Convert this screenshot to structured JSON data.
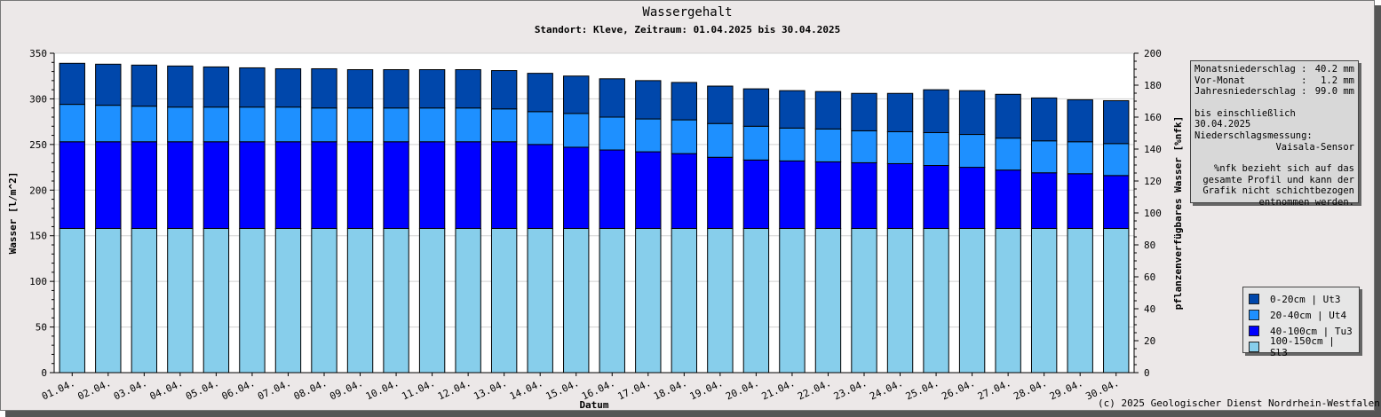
{
  "chart_data": {
    "type": "bar",
    "stacked": true,
    "title": "Wassergehalt",
    "subtitle": "Standort: Kleve, Zeitraum: 01.04.2025 bis 30.04.2025",
    "xlabel": "Datum",
    "ylabel": "Wasser [l/m^2]",
    "ylabel_right": "pflanzenverfügbares Wasser [%nfk]",
    "ylim": [
      0,
      350
    ],
    "ylim_right": [
      0,
      200
    ],
    "yticks": [
      0,
      50,
      100,
      150,
      200,
      250,
      300,
      350
    ],
    "yticks_right": [
      0,
      20,
      40,
      60,
      80,
      100,
      120,
      140,
      160,
      180,
      200
    ],
    "grid": true,
    "legend_position": "bottom-right",
    "categories": [
      "01.04.",
      "02.04.",
      "03.04.",
      "04.04.",
      "05.04.",
      "06.04.",
      "07.04.",
      "08.04.",
      "09.04.",
      "10.04.",
      "11.04.",
      "12.04.",
      "13.04.",
      "14.04.",
      "15.04.",
      "16.04.",
      "17.04.",
      "18.04.",
      "19.04.",
      "20.04.",
      "21.04.",
      "22.04.",
      "23.04.",
      "24.04.",
      "25.04.",
      "26.04.",
      "27.04.",
      "28.04.",
      "29.04.",
      "30.04."
    ],
    "series": [
      {
        "name": "100-150cm | Sl3",
        "color": "#87ceeb",
        "values": [
          158,
          158,
          158,
          158,
          158,
          158,
          158,
          158,
          158,
          158,
          158,
          158,
          158,
          158,
          158,
          158,
          158,
          158,
          158,
          158,
          158,
          158,
          158,
          158,
          158,
          158,
          158,
          158,
          158,
          158
        ]
      },
      {
        "name": "40-100cm | Tu3",
        "color": "#0000ff",
        "values": [
          95,
          95,
          95,
          95,
          95,
          95,
          95,
          95,
          95,
          95,
          95,
          95,
          95,
          92,
          89,
          86,
          84,
          82,
          78,
          75,
          74,
          73,
          72,
          71,
          69,
          67,
          64,
          61,
          60,
          58
        ]
      },
      {
        "name": "20-40cm | Ut4",
        "color": "#1e90ff",
        "values": [
          41,
          40,
          39,
          38,
          38,
          38,
          38,
          37,
          37,
          37,
          37,
          37,
          36,
          36,
          37,
          36,
          36,
          37,
          37,
          37,
          36,
          36,
          35,
          35,
          36,
          36,
          35,
          35,
          35,
          35
        ]
      },
      {
        "name": "0-20cm | Ut3",
        "color": "#0047ab",
        "values": [
          45,
          45,
          45,
          45,
          44,
          43,
          42,
          43,
          42,
          42,
          42,
          42,
          42,
          42,
          41,
          42,
          42,
          41,
          41,
          41,
          41,
          41,
          41,
          42,
          47,
          48,
          48,
          47,
          46,
          47
        ]
      }
    ]
  },
  "info": {
    "monat_label": "Monatsniederschlag :",
    "monat_value": "40.2 mm",
    "vormonat_label": "Vor-Monat          :",
    "vormonat_value": "1.2 mm",
    "jahr_label": "Jahresniederschlag :",
    "jahr_value": "99.0 mm",
    "bis_line": "bis einschließlich 30.04.2025",
    "messung_label": "Niederschlagsmessung:",
    "sensor": "Vaisala-Sensor",
    "note": "%nfk bezieht sich auf das gesamte Profil und kann der Grafik nicht schichtbezogen entnommen werden."
  },
  "legend_items": [
    {
      "label": "0-20cm | Ut3",
      "color": "#0047ab"
    },
    {
      "label": "20-40cm | Ut4",
      "color": "#1e90ff"
    },
    {
      "label": "40-100cm | Tu3",
      "color": "#0000ff"
    },
    {
      "label": "100-150cm | Sl3",
      "color": "#87ceeb"
    }
  ],
  "copyright": "(c) 2025 Geologischer Dienst Nordrhein-Westfalen"
}
